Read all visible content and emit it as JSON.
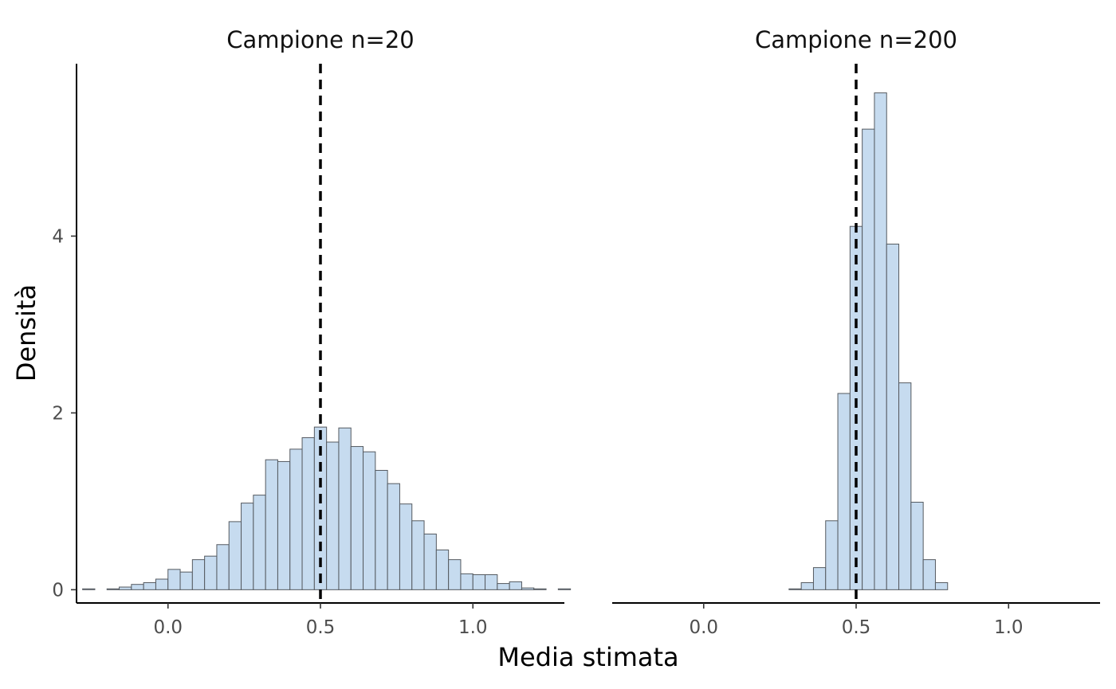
{
  "chart_data": {
    "type": "bar",
    "xlabel": "Media stimata",
    "ylabel": "Densità",
    "x_ticks": [
      "0.0",
      "0.5",
      "1.0"
    ],
    "y_ticks": [
      "0",
      "2",
      "4"
    ],
    "xlim": [
      -0.3,
      1.3
    ],
    "ylim": [
      -0.15,
      5.95
    ],
    "reference_line_x": 0.5,
    "bin_width": 0.04,
    "x_start": -0.28,
    "panels": [
      {
        "title": "Campione n=20",
        "values": [
          0.01,
          0.0,
          0.01,
          0.03,
          0.06,
          0.08,
          0.12,
          0.23,
          0.2,
          0.34,
          0.38,
          0.51,
          0.77,
          0.98,
          1.07,
          1.47,
          1.45,
          1.59,
          1.72,
          1.84,
          1.67,
          1.83,
          1.62,
          1.56,
          1.35,
          1.2,
          0.97,
          0.78,
          0.63,
          0.45,
          0.34,
          0.18,
          0.17,
          0.17,
          0.07,
          0.09,
          0.02,
          0.01,
          0.0,
          0.01
        ]
      },
      {
        "title": "Campione n=200",
        "values": [
          0,
          0,
          0,
          0,
          0,
          0,
          0,
          0,
          0,
          0,
          0,
          0,
          0,
          0,
          0.01,
          0.08,
          0.25,
          0.78,
          2.22,
          4.11,
          5.21,
          5.62,
          3.91,
          2.34,
          0.99,
          0.34,
          0.08,
          0,
          0,
          0,
          0,
          0,
          0,
          0,
          0,
          0,
          0,
          0,
          0,
          0
        ]
      }
    ]
  }
}
